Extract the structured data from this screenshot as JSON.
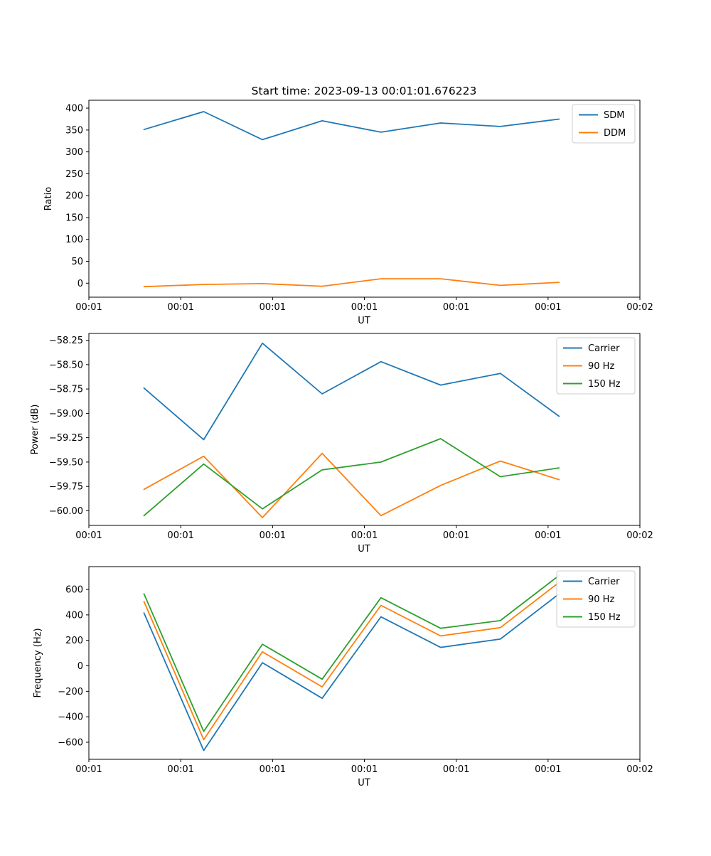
{
  "title": "Start time: 2023-09-13 00:01:01.676223",
  "colors": {
    "blue": "#1f77b4",
    "orange": "#ff7f0e",
    "green": "#2ca02c"
  },
  "chart_data": [
    {
      "type": "line",
      "name": "ratio-plot",
      "title": "Start time: 2023-09-13 00:01:01.676223",
      "xlabel": "UT",
      "ylabel": "Ratio",
      "x": [
        6.0,
        12.5,
        18.9,
        25.4,
        31.8,
        38.3,
        44.8,
        51.2
      ],
      "xlim": [
        0,
        60
      ],
      "ylim": [
        -32,
        418
      ],
      "xticks": [
        0,
        10,
        20,
        30,
        40,
        50,
        60
      ],
      "xtick_labels": [
        "00:01",
        "00:01",
        "00:01",
        "00:01",
        "00:01",
        "00:01",
        "00:02"
      ],
      "yticks": [
        0,
        50,
        100,
        150,
        200,
        250,
        300,
        350,
        400
      ],
      "ytick_labels": [
        "0",
        "50",
        "100",
        "150",
        "200",
        "250",
        "300",
        "350",
        "400"
      ],
      "grid": false,
      "legend_position": "top-right",
      "series": [
        {
          "name": "SDM",
          "color": "#1f77b4",
          "values": [
            351,
            392,
            328,
            371,
            345,
            366,
            358,
            375
          ]
        },
        {
          "name": "DDM",
          "color": "#ff7f0e",
          "values": [
            -8,
            -3,
            -1,
            -7,
            10,
            10,
            -5,
            2
          ]
        }
      ]
    },
    {
      "type": "line",
      "name": "power-plot",
      "title": "",
      "xlabel": "UT",
      "ylabel": "Power (dB)",
      "x": [
        6.0,
        12.5,
        18.9,
        25.4,
        31.8,
        38.3,
        44.8,
        51.2
      ],
      "xlim": [
        0,
        60
      ],
      "ylim": [
        -60.15,
        -58.18
      ],
      "xticks": [
        0,
        10,
        20,
        30,
        40,
        50,
        60
      ],
      "xtick_labels": [
        "00:01",
        "00:01",
        "00:01",
        "00:01",
        "00:01",
        "00:01",
        "00:02"
      ],
      "yticks": [
        -60.0,
        -59.75,
        -59.5,
        -59.25,
        -59.0,
        -58.75,
        -58.5,
        -58.25
      ],
      "ytick_labels": [
        "−60.00",
        "−59.75",
        "−59.50",
        "−59.25",
        "−59.00",
        "−58.75",
        "−58.50",
        "−58.25"
      ],
      "grid": false,
      "legend_position": "top-right",
      "series": [
        {
          "name": "Carrier",
          "color": "#1f77b4",
          "values": [
            -58.74,
            -59.27,
            -58.28,
            -58.8,
            -58.47,
            -58.71,
            -58.59,
            -59.03
          ]
        },
        {
          "name": "90 Hz",
          "color": "#ff7f0e",
          "values": [
            -59.78,
            -59.44,
            -60.07,
            -59.41,
            -60.05,
            -59.74,
            -59.49,
            -59.68
          ]
        },
        {
          "name": "150 Hz",
          "color": "#2ca02c",
          "values": [
            -60.05,
            -59.52,
            -59.98,
            -59.58,
            -59.5,
            -59.26,
            -59.65,
            -59.56
          ]
        }
      ]
    },
    {
      "type": "line",
      "name": "frequency-plot",
      "title": "",
      "xlabel": "UT",
      "ylabel": "Frequency (Hz)",
      "x": [
        6.0,
        12.5,
        18.9,
        25.4,
        31.8,
        38.3,
        44.8,
        51.2
      ],
      "xlim": [
        0,
        60
      ],
      "ylim": [
        -734,
        779
      ],
      "xticks": [
        0,
        10,
        20,
        30,
        40,
        50,
        60
      ],
      "xtick_labels": [
        "00:01",
        "00:01",
        "00:01",
        "00:01",
        "00:01",
        "00:01",
        "00:02"
      ],
      "yticks": [
        -600,
        -400,
        -200,
        0,
        200,
        400,
        600
      ],
      "ytick_labels": [
        "−600",
        "−400",
        "−200",
        "0",
        "200",
        "400",
        "600"
      ],
      "grid": false,
      "legend_position": "top-right",
      "series": [
        {
          "name": "Carrier",
          "color": "#1f77b4",
          "values": [
            415,
            -665,
            25,
            -255,
            385,
            145,
            210,
            565
          ]
        },
        {
          "name": "90 Hz",
          "color": "#ff7f0e",
          "values": [
            505,
            -580,
            110,
            -165,
            475,
            235,
            300,
            655
          ]
        },
        {
          "name": "150 Hz",
          "color": "#2ca02c",
          "values": [
            565,
            -515,
            170,
            -105,
            535,
            295,
            355,
            710
          ]
        }
      ]
    }
  ]
}
